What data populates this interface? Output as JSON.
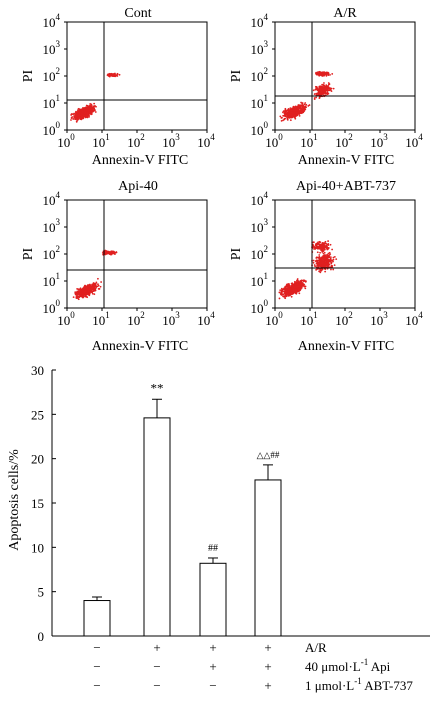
{
  "flow_panels": [
    {
      "title": "Cont",
      "xlabel": "Annexin-V FITC",
      "ylabel": "PI",
      "tick_base": "10",
      "tick_exps": [
        "0",
        "1",
        "2",
        "3",
        "4"
      ]
    },
    {
      "title": "A/R",
      "xlabel": "Annexin-V FITC",
      "ylabel": "PI",
      "tick_base": "10",
      "tick_exps": [
        "0",
        "1",
        "2",
        "3",
        "4"
      ]
    },
    {
      "title": "Api-40",
      "xlabel": "Annexin-V FITC",
      "ylabel": "PI",
      "tick_base": "10",
      "tick_exps": [
        "0",
        "1",
        "2",
        "3",
        "4"
      ]
    },
    {
      "title": "Api-40+ABT-737",
      "xlabel": "Annexin-V FITC",
      "ylabel": "PI",
      "tick_base": "10",
      "tick_exps": [
        "0",
        "1",
        "2",
        "3",
        "4"
      ]
    }
  ],
  "dot_color": "#e02020",
  "chart_data": {
    "type": "bar",
    "ylabel": "Apoptosis cells/%",
    "ylim": [
      0,
      30
    ],
    "yticks": [
      "0",
      "5",
      "10",
      "15",
      "20",
      "25",
      "30"
    ],
    "values": [
      4.0,
      24.6,
      8.2,
      17.6
    ],
    "errors": [
      0.4,
      2.1,
      0.6,
      1.7
    ],
    "annotations": [
      "",
      "**",
      "##",
      "△△##"
    ],
    "conditions": [
      {
        "label": "A/R",
        "marks": [
          "−",
          "+",
          "+",
          "+"
        ]
      },
      {
        "label": "40 μmol·L",
        "sup": "-1",
        "label_after": " Api",
        "marks": [
          "−",
          "−",
          "+",
          "+"
        ]
      },
      {
        "label": "1 μmol·L",
        "sup": "-1",
        "label_after": " ABT-737",
        "marks": [
          "−",
          "−",
          "−",
          "+"
        ]
      }
    ]
  }
}
